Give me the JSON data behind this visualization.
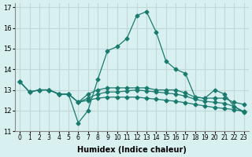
{
  "xlabel": "Humidex (Indice chaleur)",
  "ylabel": "",
  "xlim": [
    -0.5,
    23.5
  ],
  "ylim": [
    11,
    17.2
  ],
  "yticks": [
    11,
    12,
    13,
    14,
    15,
    16,
    17
  ],
  "xtick_labels": [
    "0",
    "1",
    "2",
    "3",
    "4",
    "5",
    "6",
    "7",
    "8",
    "9",
    "10",
    "11",
    "12",
    "13",
    "14",
    "15",
    "16",
    "17",
    "18",
    "19",
    "20",
    "21",
    "22",
    "23"
  ],
  "bg_color": "#d8f0f0",
  "grid_color": "#c0d8d8",
  "line_color": "#1a7a6e",
  "lines": [
    {
      "x": [
        0,
        1,
        2,
        3,
        4,
        5,
        6,
        7,
        8,
        9,
        10,
        11,
        12,
        13,
        14,
        15,
        16,
        17,
        18,
        19,
        20,
        21,
        22,
        23
      ],
      "y": [
        13.4,
        12.9,
        13.0,
        13.0,
        12.8,
        12.8,
        11.4,
        12.0,
        13.5,
        14.9,
        15.1,
        15.5,
        16.6,
        16.8,
        15.8,
        14.4,
        14.0,
        13.8,
        12.65,
        12.6,
        13.0,
        12.8,
        12.2,
        11.9
      ]
    },
    {
      "x": [
        0,
        1,
        2,
        3,
        4,
        5,
        6,
        7,
        8,
        9,
        10,
        11,
        12,
        13,
        14,
        15,
        16,
        17,
        18,
        19,
        20,
        21,
        22,
        23
      ],
      "y": [
        13.4,
        12.9,
        13.0,
        13.0,
        12.8,
        12.8,
        12.4,
        12.8,
        13.0,
        13.1,
        13.1,
        13.1,
        13.1,
        13.1,
        13.0,
        13.0,
        13.0,
        12.85,
        12.65,
        12.6,
        12.6,
        12.6,
        12.4,
        12.3
      ]
    },
    {
      "x": [
        0,
        1,
        2,
        3,
        4,
        5,
        6,
        7,
        8,
        9,
        10,
        11,
        12,
        13,
        14,
        15,
        16,
        17,
        18,
        19,
        20,
        21,
        22,
        23
      ],
      "y": [
        13.4,
        12.9,
        13.0,
        13.0,
        12.8,
        12.8,
        12.4,
        12.6,
        12.8,
        12.9,
        12.9,
        12.95,
        13.0,
        12.95,
        12.9,
        12.85,
        12.8,
        12.7,
        12.55,
        12.45,
        12.4,
        12.35,
        12.2,
        11.95
      ]
    },
    {
      "x": [
        3,
        4,
        5,
        6,
        7,
        8,
        9,
        10,
        11,
        12,
        13,
        14,
        15,
        16,
        17,
        18,
        19,
        20,
        21,
        22,
        23
      ],
      "y": [
        13.0,
        12.8,
        12.8,
        12.4,
        12.5,
        12.6,
        12.65,
        12.65,
        12.65,
        12.65,
        12.6,
        12.55,
        12.5,
        12.45,
        12.38,
        12.3,
        12.22,
        12.15,
        12.1,
        12.05,
        11.95
      ]
    }
  ]
}
